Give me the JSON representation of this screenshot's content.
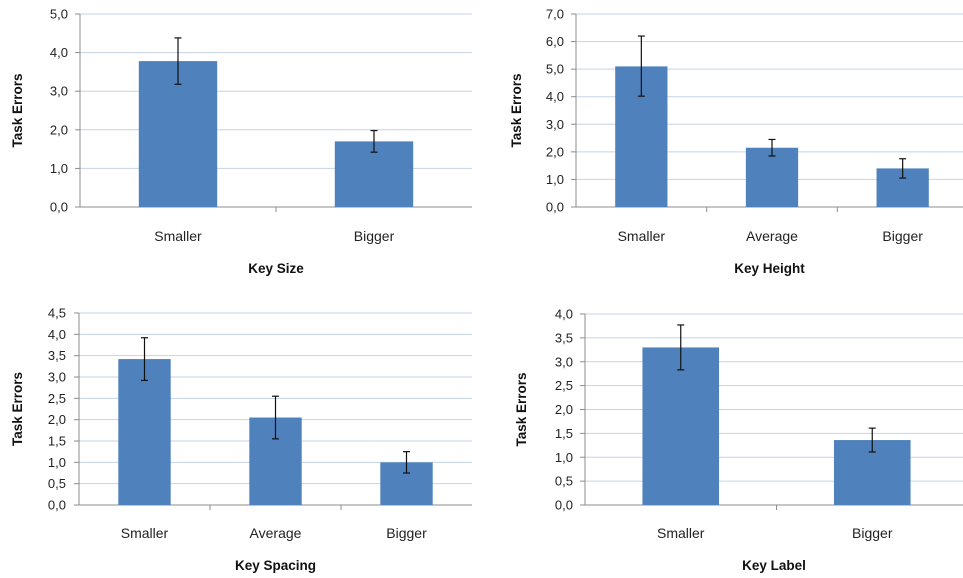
{
  "chart_data": [
    {
      "type": "bar",
      "xlabel": "Key Size",
      "ylabel": "Task Errors",
      "categories": [
        "Smaller",
        "Bigger"
      ],
      "values": [
        3.78,
        1.7
      ],
      "error_low": [
        3.18,
        1.42
      ],
      "error_high": [
        4.38,
        1.98
      ],
      "ylim": [
        0,
        5
      ],
      "yticks": [
        "0,0",
        "1,0",
        "2,0",
        "3,0",
        "4,0",
        "5,0"
      ],
      "grid": true,
      "bar_color": "#4f81bd"
    },
    {
      "type": "bar",
      "xlabel": "Key Height",
      "ylabel": "Task Errors",
      "categories": [
        "Smaller",
        "Average",
        "Bigger"
      ],
      "values": [
        5.1,
        2.15,
        1.4
      ],
      "error_low": [
        4.02,
        1.85,
        1.05
      ],
      "error_high": [
        6.2,
        2.45,
        1.75
      ],
      "ylim": [
        0,
        7
      ],
      "yticks": [
        "0,0",
        "1,0",
        "2,0",
        "3,0",
        "4,0",
        "5,0",
        "6,0",
        "7,0"
      ],
      "grid": true,
      "bar_color": "#4f81bd"
    },
    {
      "type": "bar",
      "xlabel": "Key Spacing",
      "ylabel": "Task Errors",
      "categories": [
        "Smaller",
        "Average",
        "Bigger"
      ],
      "values": [
        3.42,
        2.05,
        1.0
      ],
      "error_low": [
        2.92,
        1.55,
        0.75
      ],
      "error_high": [
        3.92,
        2.55,
        1.25
      ],
      "ylim": [
        0,
        4.5
      ],
      "yticks": [
        "0,0",
        "0,5",
        "1,0",
        "1,5",
        "2,0",
        "2,5",
        "3,0",
        "3,5",
        "4,0",
        "4,5"
      ],
      "grid": true,
      "bar_color": "#4f81bd"
    },
    {
      "type": "bar",
      "xlabel": "Key Label",
      "ylabel": "Task Errors",
      "categories": [
        "Smaller",
        "Bigger"
      ],
      "values": [
        3.3,
        1.36
      ],
      "error_low": [
        2.83,
        1.11
      ],
      "error_high": [
        3.77,
        1.61
      ],
      "ylim": [
        0,
        4
      ],
      "yticks": [
        "0,0",
        "0,5",
        "1,0",
        "1,5",
        "2,0",
        "2,5",
        "3,0",
        "3,5",
        "4,0"
      ],
      "grid": true,
      "bar_color": "#4f81bd"
    }
  ]
}
